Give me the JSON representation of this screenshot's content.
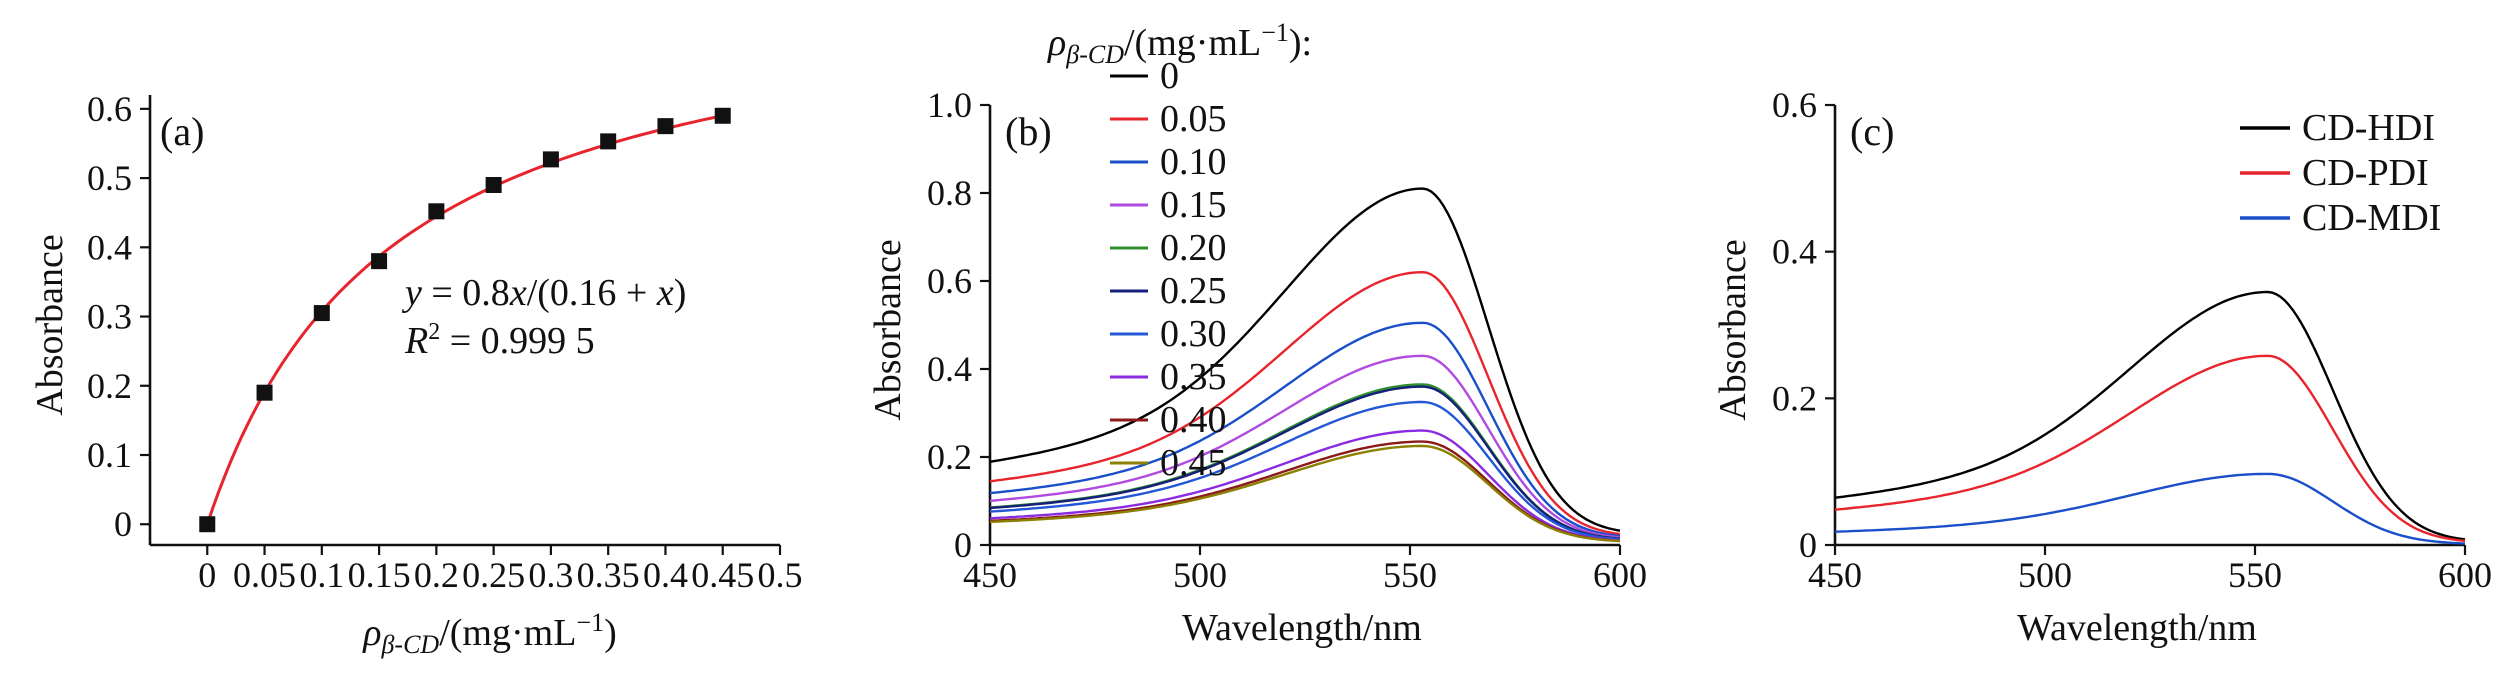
{
  "chart_data": [
    {
      "panel_label": "(a)",
      "type": "scatter",
      "xlabel": {
        "symbol": "ρ",
        "subscript": "β-CD",
        "unit": "/(mg·mL",
        "exp": "−1",
        "close": ")"
      },
      "ylabel": "Absorbance",
      "xlim": [
        -0.05,
        0.5
      ],
      "ylim": [
        -0.03,
        0.62
      ],
      "xticks": [
        "0",
        "0.05",
        "0.1",
        "0.15",
        "0.2",
        "0.25",
        "0.3",
        "0.35",
        "0.4",
        "0.45",
        "0.5"
      ],
      "xtick_values": [
        0,
        0.05,
        0.1,
        0.15,
        0.2,
        0.25,
        0.3,
        0.35,
        0.4,
        0.45,
        0.5
      ],
      "yticks": [
        "0",
        "0.1",
        "0.2",
        "0.3",
        "0.4",
        "0.5",
        "0.6"
      ],
      "ytick_values": [
        0,
        0.1,
        0.2,
        0.3,
        0.4,
        0.5,
        0.6
      ],
      "x": [
        0,
        0.05,
        0.1,
        0.15,
        0.2,
        0.25,
        0.3,
        0.35,
        0.4,
        0.45
      ],
      "y": [
        0,
        0.19,
        0.305,
        0.38,
        0.452,
        0.49,
        0.527,
        0.553,
        0.575,
        0.59
      ],
      "fit": {
        "a": 0.8,
        "b": 0.16,
        "color": "#e8242c"
      },
      "equation": {
        "y": "y",
        "mid": " = 0.8",
        "x1": "x",
        "mid2": "/(0.16 + ",
        "x2": "x",
        "end": ")"
      },
      "r2": {
        "r": "R",
        "sup": "2",
        "value": " = 0.999 5"
      }
    },
    {
      "panel_label": "(b)",
      "type": "line",
      "xlabel": "Wavelength/nm",
      "ylabel": "Absorbance",
      "xlim": [
        450,
        600
      ],
      "ylim": [
        0,
        1.0
      ],
      "xticks": [
        "450",
        "500",
        "550",
        "600"
      ],
      "xtick_values": [
        450,
        500,
        550,
        600
      ],
      "yticks": [
        "0",
        "0.2",
        "0.4",
        "0.6",
        "0.8",
        "1.0"
      ],
      "ytick_values": [
        0,
        0.2,
        0.4,
        0.6,
        0.8,
        1.0
      ],
      "legend_title": {
        "symbol": "ρ",
        "subscript": "β-CD",
        "unit": "/(mg·mL",
        "exp": "−1",
        "close": "):"
      },
      "shape": {
        "peak": 553,
        "base450": 0.04,
        "base600": 0.015
      },
      "series": [
        {
          "name": "0",
          "peak": 0.81,
          "color": "#000000"
        },
        {
          "name": "0.05",
          "peak": 0.62,
          "color": "#e8242c"
        },
        {
          "name": "0.10",
          "peak": 0.505,
          "color": "#1a4fc9"
        },
        {
          "name": "0.15",
          "peak": 0.43,
          "color": "#b04ae0"
        },
        {
          "name": "0.20",
          "peak": 0.365,
          "color": "#2f8f2f"
        },
        {
          "name": "0.25",
          "peak": 0.36,
          "color": "#16207a"
        },
        {
          "name": "0.30",
          "peak": 0.325,
          "color": "#2457d6"
        },
        {
          "name": "0.35",
          "peak": 0.26,
          "color": "#8a2be2"
        },
        {
          "name": "0.40",
          "peak": 0.235,
          "color": "#8b1a1a"
        },
        {
          "name": "0.45",
          "peak": 0.225,
          "color": "#8b8000"
        }
      ]
    },
    {
      "panel_label": "(c)",
      "type": "line",
      "xlabel": "Wavelength/nm",
      "ylabel": "Absorbance",
      "xlim": [
        450,
        600
      ],
      "ylim": [
        0,
        0.6
      ],
      "xticks": [
        "450",
        "500",
        "550",
        "600"
      ],
      "xtick_values": [
        450,
        500,
        550,
        600
      ],
      "yticks": [
        "0",
        "0.2",
        "0.4",
        "0.6"
      ],
      "ytick_values": [
        0,
        0.2,
        0.4,
        0.6
      ],
      "shape": {
        "peak": 553,
        "base450": 0.012,
        "base600": 0.006
      },
      "legend": "top-right",
      "series": [
        {
          "name": "CD-HDI",
          "peak": 0.345,
          "color": "#000000"
        },
        {
          "name": "CD-PDI",
          "peak": 0.258,
          "color": "#e8242c"
        },
        {
          "name": "CD-MDI",
          "peak": 0.097,
          "color": "#1a4fc9"
        }
      ]
    }
  ]
}
